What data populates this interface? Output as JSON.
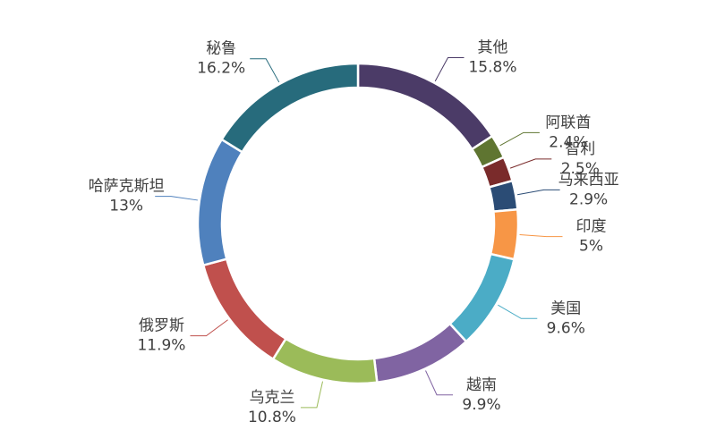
{
  "chart_data": {
    "type": "pie",
    "categories": [
      "其他",
      "阿联酋",
      "智利",
      "马来西亚",
      "印度",
      "美国",
      "越南",
      "乌克兰",
      "俄罗斯",
      "哈萨克斯坦",
      "秘鲁"
    ],
    "values": [
      15.8,
      2.4,
      2.5,
      2.9,
      5,
      9.6,
      9.9,
      10.8,
      11.9,
      13,
      16.2
    ],
    "value_labels": [
      "15.8%",
      "2.4%",
      "2.5%",
      "2.9%",
      "5%",
      "9.6%",
      "9.9%",
      "10.8%",
      "11.9%",
      "13%",
      "16.2%"
    ],
    "colors": [
      "#4b3b67",
      "#5f7531",
      "#7a2b2b",
      "#2b4c75",
      "#f79646",
      "#4bacc6",
      "#8064a2",
      "#9bbb59",
      "#c0504d",
      "#4f81bd",
      "#276b7c"
    ]
  }
}
